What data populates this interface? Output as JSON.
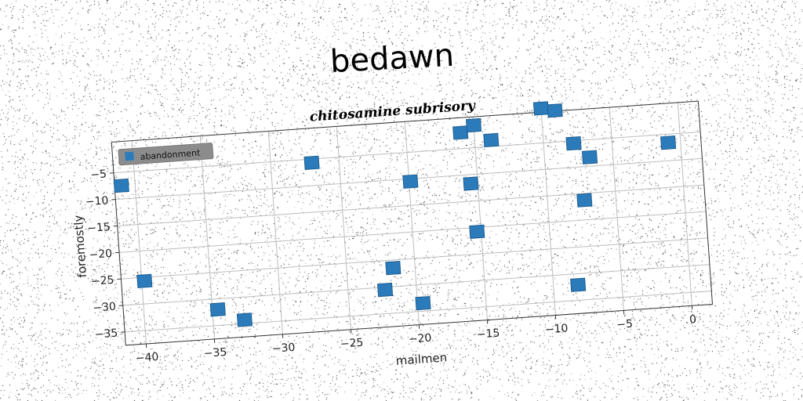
{
  "title": "bedawn",
  "chart_data": {
    "type": "scatter",
    "subtitle": "chitosamine subrisory",
    "xlabel": "mailmen",
    "ylabel": "foremostly",
    "xlim": [
      -41.5,
      1.5
    ],
    "ylim": [
      -37.5,
      0.8
    ],
    "xticks": [
      -40,
      -35,
      -30,
      -25,
      -20,
      -15,
      -10,
      -5,
      0
    ],
    "yticks": [
      -35,
      -30,
      -25,
      -20,
      -15,
      -10,
      -5
    ],
    "grid": true,
    "legend_position": "top-left",
    "series": [
      {
        "name": "abandonment",
        "color": "#2b7bba",
        "x": [
          -41,
          -27,
          -39.8,
          -34.6,
          -32.7,
          -19.9,
          -21.6,
          -22.3,
          -19.6,
          -16,
          -15,
          -13.8,
          -15.5,
          -15.3,
          -10,
          -9,
          -7.8,
          -6.7,
          -7.3,
          -8.2,
          -0.9
        ],
        "y": [
          -7.5,
          -5.7,
          -25.7,
          -32,
          -34.3,
          -10.5,
          -26.5,
          -30.5,
          -33.5,
          -2,
          -0.8,
          -3.8,
          -11.7,
          -20.8,
          1.5,
          0.9,
          -5.5,
          -8.3,
          -16.3,
          -32.1,
          -6.6
        ]
      }
    ]
  }
}
